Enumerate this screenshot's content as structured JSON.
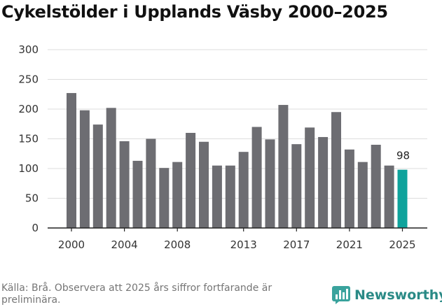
{
  "title": "Cykelstölder i Upplands Väsby 2000–2025",
  "source": "Källa: Brå. Observera att 2025 års siffror fortfarande är preliminära.",
  "brand": {
    "name": "Newsworthy",
    "icon": "bar-chart-icon",
    "color": "#2a8a86"
  },
  "colors": {
    "bar": "#6d6d72",
    "highlight": "#0fa39c",
    "grid": "#dddddd",
    "axis": "#222222"
  },
  "chart_data": {
    "type": "bar",
    "title": "Cykelstölder i Upplands Väsby 2000–2025",
    "xlabel": "",
    "ylabel": "",
    "categories": [
      "2000",
      "2001",
      "2002",
      "2003",
      "2004",
      "2005",
      "2006",
      "2007",
      "2008",
      "2009",
      "2010",
      "2011",
      "2012",
      "2013",
      "2014",
      "2015",
      "2016",
      "2017",
      "2018",
      "2019",
      "2020",
      "2021",
      "2022",
      "2023",
      "2024",
      "2025"
    ],
    "values": [
      227,
      198,
      174,
      202,
      146,
      113,
      150,
      101,
      111,
      160,
      145,
      105,
      105,
      128,
      170,
      149,
      207,
      141,
      169,
      153,
      195,
      132,
      111,
      140,
      105,
      98
    ],
    "highlight_category": "2025",
    "data_labels": [
      {
        "category": "2025",
        "text": "98"
      }
    ],
    "x_tick_labels": [
      "2000",
      "2004",
      "2008",
      "2013",
      "2017",
      "2021",
      "2025"
    ],
    "y_ticks": [
      0,
      50,
      100,
      150,
      200,
      250,
      300
    ],
    "ylim": [
      0,
      300
    ],
    "grid": true
  }
}
